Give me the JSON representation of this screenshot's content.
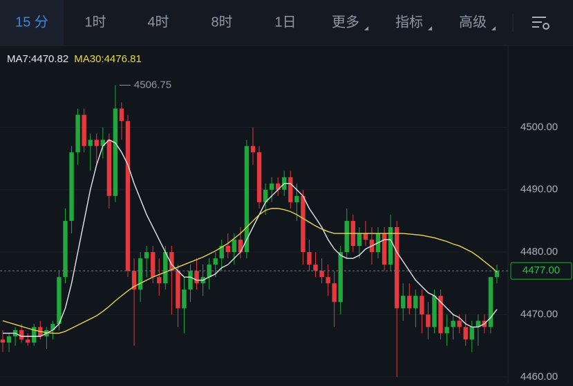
{
  "toolbar": {
    "tabs": [
      "15 分",
      "1时",
      "4时",
      "8时",
      "1日",
      "更多",
      "指标",
      "高级"
    ]
  },
  "chart_data": {
    "type": "candlestick",
    "open": [
      4466,
      4465.5,
      4466.5,
      4467.5,
      4466,
      4465.5,
      4468,
      4466.5,
      4467.5,
      4468.5,
      4476,
      4485,
      4496,
      4502,
      4497,
      4498,
      4497,
      4498,
      4489,
      4503,
      4501,
      4477,
      4474,
      4479,
      4480,
      4476,
      4475,
      4480,
      4477,
      4471,
      4474,
      4477,
      4475,
      4476,
      4478,
      4479,
      4481,
      4480,
      4482,
      4480,
      4497,
      4496,
      4488,
      4490,
      4491,
      4490,
      4492,
      4488,
      4489,
      4480,
      4478,
      4477,
      4476,
      4475,
      4472,
      4480,
      4485,
      4481,
      4483,
      4482,
      4480,
      4483,
      4478,
      4484,
      4471,
      4473,
      4471,
      4473,
      4470,
      4468,
      4473,
      4467,
      4468,
      4469,
      4468,
      4466,
      4468,
      4469,
      4468,
      4476
    ],
    "high": [
      4467.5,
      4467,
      4468,
      4468.5,
      4467,
      4468.5,
      4469,
      4468,
      4469,
      4477,
      4487,
      4497,
      4503,
      4503,
      4499,
      4499,
      4500,
      4499,
      4506.75,
      4504,
      4502,
      4479,
      4480,
      4481,
      4481,
      4479,
      4481,
      4481,
      4478,
      4476,
      4478,
      4479,
      4478,
      4479,
      4480,
      4482,
      4483,
      4483,
      4484,
      4498,
      4500,
      4497,
      4491,
      4492,
      4492,
      4493,
      4493,
      4491,
      4490,
      4482,
      4480,
      4479,
      4478,
      4477,
      4481,
      4487,
      4486,
      4484,
      4485,
      4484,
      4484,
      4484,
      4486,
      4485,
      4475,
      4475,
      4474,
      4474,
      4472,
      4474,
      4474,
      4470,
      4470,
      4470,
      4470,
      4469,
      4470,
      4470,
      4476,
      4478
    ],
    "low": [
      4464,
      4464,
      4465,
      4465.5,
      4465,
      4465,
      4466,
      4464.5,
      4466,
      4467.5,
      4475,
      4483,
      4494,
      4496,
      4493,
      4494,
      4495,
      4487,
      4488,
      4498,
      4476,
      4465,
      4472,
      4476,
      4475,
      4473,
      4474,
      4470,
      4468,
      4467,
      4472,
      4474,
      4473,
      4474,
      4476,
      4477,
      4479,
      4478,
      4479,
      4479,
      4494,
      4487,
      4486,
      4488,
      4489,
      4489,
      4487,
      4485,
      4478,
      4477,
      4476,
      4475,
      4473,
      4468,
      4470,
      4479,
      4480,
      4479,
      4481,
      4478,
      4479,
      4477,
      4477,
      4460,
      4469,
      4470,
      4468,
      4467,
      4466,
      4467,
      4466,
      4465,
      4466,
      4467,
      4465,
      4464,
      4465,
      4467,
      4467,
      4475
    ],
    "close": [
      4465.5,
      4466.5,
      4467.5,
      4466,
      4465.5,
      4468,
      4466.5,
      4467.5,
      4468.5,
      4476,
      4485,
      4496,
      4502,
      4497,
      4498,
      4497,
      4498,
      4489,
      4503,
      4501,
      4477,
      4474,
      4479,
      4480,
      4476,
      4475,
      4480,
      4477,
      4471,
      4474,
      4477,
      4475,
      4476,
      4478,
      4479,
      4481,
      4480,
      4482,
      4480,
      4497,
      4496,
      4488,
      4490,
      4491,
      4490,
      4492,
      4488,
      4489,
      4480,
      4478,
      4477,
      4476,
      4475,
      4472,
      4480,
      4485,
      4481,
      4483,
      4482,
      4480,
      4483,
      4478,
      4484,
      4471,
      4473,
      4471,
      4473,
      4470,
      4468,
      4473,
      4467,
      4468,
      4469,
      4468,
      4466,
      4468,
      4469,
      4468,
      4476,
      4477
    ],
    "up_color": "#20a83c",
    "down_color": "#e5393e",
    "series": [
      {
        "name": "MA7:4470.82",
        "color": "#e6e8ec",
        "values": [
          4467,
          4467,
          4467,
          4466.5,
          4466.5,
          4466.5,
          4466.5,
          4467,
          4467.5,
          4468.5,
          4471,
          4475,
          4480,
          4485,
          4490,
          4494,
          4497,
          4498,
          4497.5,
          4496,
          4494,
          4491,
          4488.5,
          4486,
          4484,
          4482,
          4480,
          4478,
          4477,
          4476,
          4476,
          4475.5,
          4475.5,
          4476,
          4476.5,
          4477.5,
          4478,
          4479,
          4480,
          4482,
          4484,
          4486,
          4488,
          4489,
          4490,
          4491,
          4491,
          4490,
          4489,
          4487,
          4485.5,
          4484,
          4482,
          4480.5,
          4479.5,
          4479,
          4479,
          4479.5,
          4480.5,
          4481,
          4481.5,
          4482,
          4482,
          4480,
          4478.5,
          4477,
          4475.5,
          4474.5,
          4473.5,
          4473,
          4472,
          4471,
          4470,
          4469.5,
          4468.5,
          4468,
          4468,
          4468.5,
          4469.5,
          4470.82
        ]
      },
      {
        "name": "MA30:4476.81",
        "color": "#e9d94b",
        "values": [
          4469,
          4468.7,
          4468.4,
          4468.1,
          4467.8,
          4467.5,
          4467.3,
          4467.1,
          4467,
          4467,
          4467.3,
          4467.8,
          4468.3,
          4468.8,
          4469.3,
          4469.8,
          4470.5,
          4471.3,
          4472.2,
          4473,
          4473.8,
          4474.5,
          4475,
          4475.5,
          4476,
          4476.4,
          4476.8,
          4477.2,
          4477.6,
          4478,
          4478.4,
          4478.8,
          4479.2,
          4479.7,
          4480.2,
          4480.8,
          4481.4,
          4482.2,
          4483,
          4484,
          4485,
          4486,
          4486.7,
          4487,
          4487,
          4486.8,
          4486.5,
          4486,
          4485.4,
          4484.8,
          4484.2,
          4483.7,
          4483.3,
          4483,
          4483,
          4483,
          4483,
          4483,
          4483,
          4483,
          4483,
          4483,
          4483,
          4483,
          4483,
          4482.9,
          4482.8,
          4482.7,
          4482.5,
          4482.3,
          4482,
          4481.7,
          4481.3,
          4481,
          4480.5,
          4480,
          4479.3,
          4478.5,
          4477.7,
          4476.81
        ]
      }
    ],
    "ylim": [
      4459.1,
      4513.1
    ],
    "yticks": [
      {
        "value": 4460,
        "label": "4460.00"
      },
      {
        "value": 4470,
        "label": "4470.00"
      },
      {
        "value": 4480,
        "label": "4480.00"
      },
      {
        "value": 4490,
        "label": "4490.00"
      },
      {
        "value": 4500,
        "label": "4500.00"
      }
    ],
    "grid": true,
    "max_annotation": 4506.75,
    "last_price": {
      "value": 4477,
      "label": "4477.00"
    }
  }
}
